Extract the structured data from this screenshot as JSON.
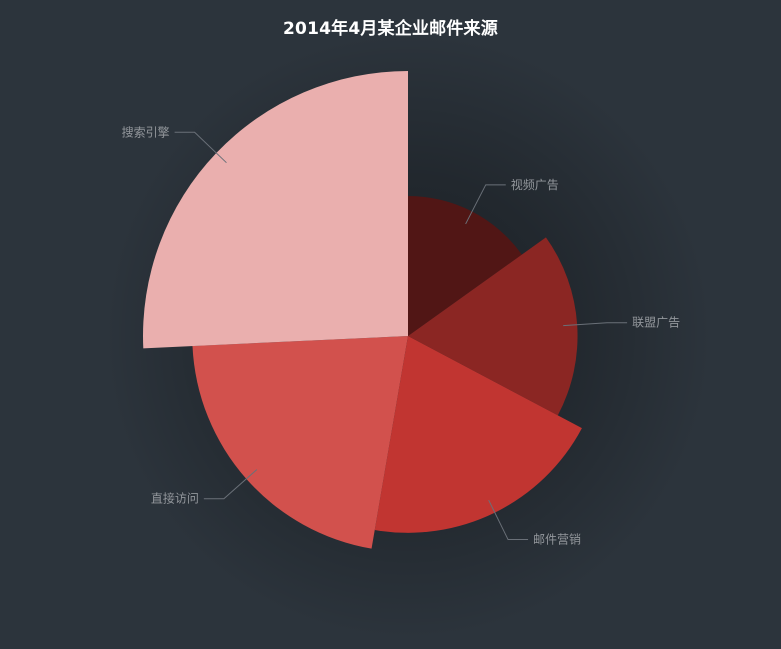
{
  "chart_data": {
    "type": "pie",
    "variant": "rose-radius",
    "title": "2014年4月某企业邮件来源",
    "series": [
      {
        "data": [
          {
            "name": "直接访问",
            "value": 335
          },
          {
            "name": "邮件营销",
            "value": 310
          },
          {
            "name": "联盟广告",
            "value": 274
          },
          {
            "name": "视频广告",
            "value": 235
          },
          {
            "name": "搜索引擎",
            "value": 400
          }
        ]
      }
    ],
    "colors": {
      "background": "#2c343c",
      "base": "#c23531",
      "label": "#93979c",
      "label_line": "#6a7078",
      "title": "#ffffff"
    },
    "legend": "none"
  }
}
